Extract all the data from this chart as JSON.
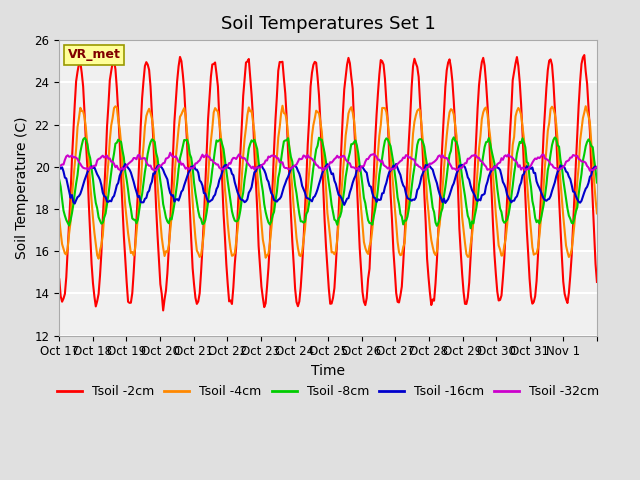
{
  "title": "Soil Temperatures Set 1",
  "xlabel": "Time",
  "ylabel": "Soil Temperature (C)",
  "ylim": [
    12,
    26
  ],
  "yticks": [
    12,
    14,
    16,
    18,
    20,
    22,
    24,
    26
  ],
  "x_tick_positions": [
    0,
    1,
    2,
    3,
    4,
    5,
    6,
    7,
    8,
    9,
    10,
    11,
    12,
    13,
    14,
    15,
    16
  ],
  "x_tick_labels": [
    "Oct 17",
    "Oct 18",
    "Oct 19",
    "Oct 20",
    "Oct 21",
    "Oct 22",
    "Oct 23",
    "Oct 24",
    "Oct 25",
    "Oct 26",
    "Oct 27",
    "Oct 28",
    "Oct 29",
    "Oct 30",
    "Oct 31",
    "Nov 1",
    ""
  ],
  "series_names": [
    "Tsoil -2cm",
    "Tsoil -4cm",
    "Tsoil -8cm",
    "Tsoil -16cm",
    "Tsoil -32cm"
  ],
  "series_colors": [
    "#ff0000",
    "#ff8800",
    "#00cc00",
    "#0000cc",
    "#cc00cc"
  ],
  "series_lw": [
    1.5,
    1.5,
    1.5,
    1.5,
    1.5
  ],
  "annotation_text": "VR_met",
  "bg_color": "#e0e0e0",
  "plot_bg_color": "#f0f0f0",
  "grid_color": "#ffffff",
  "title_fontsize": 13,
  "axis_fontsize": 10,
  "tick_fontsize": 8.5,
  "legend_fontsize": 9
}
